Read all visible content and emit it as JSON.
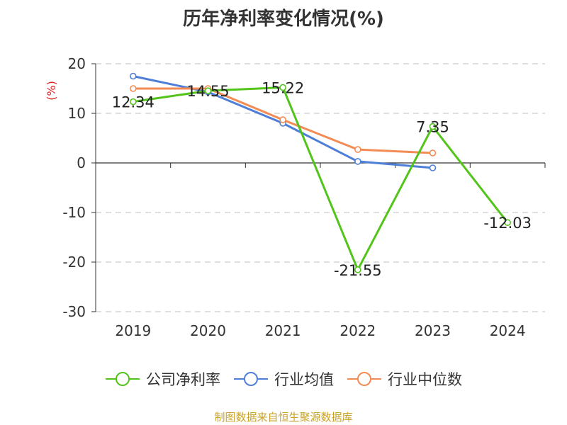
{
  "chart_data": {
    "type": "line",
    "title": "历年净利率变化情况(%)",
    "ylabel": "(%)",
    "xlabel": "",
    "ylim": [
      -30,
      20
    ],
    "yticks": [
      20,
      10,
      0,
      -10,
      -20,
      -30
    ],
    "categories": [
      "2019",
      "2020",
      "2021",
      "2022",
      "2023",
      "2024"
    ],
    "grid": true,
    "legend_position": "bottom",
    "series": [
      {
        "name": "公司净利率",
        "color": "#52c41a",
        "values": [
          12.34,
          14.55,
          15.22,
          -21.55,
          7.35,
          -12.03
        ],
        "labels": [
          "12.34",
          "14.55",
          "15.22",
          "-21.55",
          "7.35",
          "-12.03"
        ]
      },
      {
        "name": "行业均值",
        "color": "#4e7fd8",
        "values": [
          17.5,
          14.3,
          8.0,
          0.3,
          -1.0,
          null
        ]
      },
      {
        "name": "行业中位数",
        "color": "#f28b54",
        "values": [
          15.0,
          15.0,
          8.7,
          2.7,
          2.0,
          null
        ]
      }
    ]
  },
  "source": "制图数据来自恒生聚源数据库"
}
